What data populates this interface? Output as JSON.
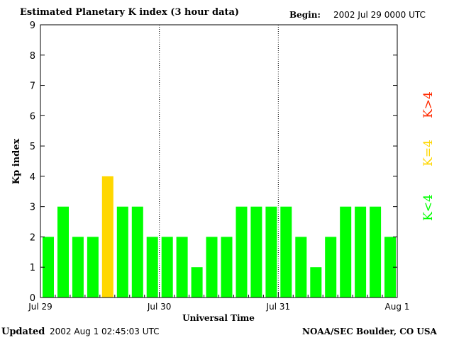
{
  "header": {
    "title": "Estimated Planetary K index (3 hour data)",
    "begin_label": "Begin:",
    "begin_value": "2002 Jul 29 0000 UTC"
  },
  "footer": {
    "updated_label": "Updated",
    "updated_value": "2002 Aug  1 02:45:03 UTC",
    "source": "NOAA/SEC Boulder, CO USA"
  },
  "colors": {
    "low": "#00ff00",
    "mid": "#ffd700",
    "high": "#ff2a00"
  },
  "legend": [
    {
      "label": "K>4",
      "color": "#ff2a00"
    },
    {
      "label": "K=4",
      "color": "#ffd700"
    },
    {
      "label": "K<4",
      "color": "#00ff00"
    }
  ],
  "chart_data": {
    "type": "bar",
    "title": "Estimated Planetary K index (3 hour data)",
    "xlabel": "Universal Time",
    "ylabel": "Kp index",
    "ylim": [
      0,
      9
    ],
    "yticks": [
      0,
      1,
      2,
      3,
      4,
      5,
      6,
      7,
      8,
      9
    ],
    "xtick_labels": [
      "Jul 29",
      "Jul 30",
      "Jul 31",
      "Aug 1"
    ],
    "day_separators": [
      "Jul 30",
      "Jul 31"
    ],
    "intervals_per_day": 8,
    "days": 3,
    "values": [
      2,
      3,
      2,
      2,
      4,
      3,
      3,
      2,
      2,
      2,
      1,
      2,
      2,
      3,
      3,
      3,
      3,
      2,
      1,
      2,
      3,
      3,
      3,
      2
    ]
  }
}
